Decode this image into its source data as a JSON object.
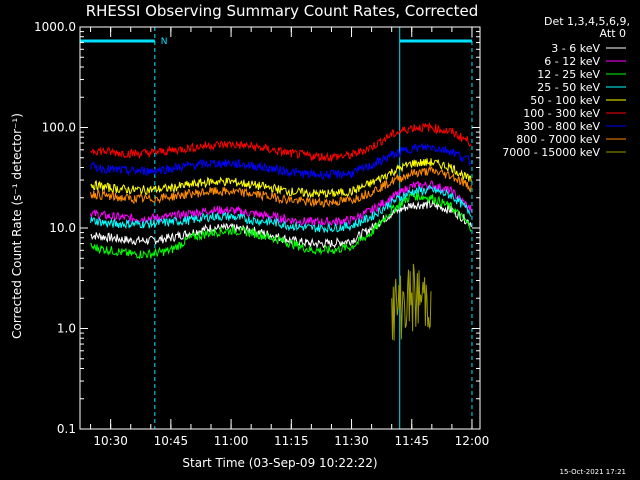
{
  "chart_data": {
    "type": "line",
    "title": "RHESSI Observing Summary Count Rates, Corrected",
    "xlabel": "Start Time (03-Sep-09 10:22:22)",
    "ylabel": "Corrected Count Rate (s⁻¹ detector⁻¹)",
    "y_scale": "log",
    "ylim": [
      0.1,
      1000
    ],
    "xlim": [
      "10:22:22",
      "12:02:00"
    ],
    "x_ticks": [
      "10:30",
      "10:45",
      "11:00",
      "11:15",
      "11:30",
      "11:45",
      "12:00"
    ],
    "y_ticks": [
      "0.1",
      "1.0",
      "10.0",
      "100.0",
      "1000.0"
    ],
    "legend_header": [
      "Det 1,3,4,5,6,9,",
      "Att 0"
    ],
    "legend_position": "right",
    "timestamp": "15-Oct-2021 17:21",
    "night_marker": "N",
    "night_periods": [
      [
        "10:22:22",
        "10:41:00"
      ],
      [
        "11:42:00",
        "12:00:00"
      ]
    ],
    "time_points": [
      "10:25",
      "10:30",
      "10:35",
      "10:40",
      "10:45",
      "10:50",
      "10:55",
      "11:00",
      "11:05",
      "11:10",
      "11:15",
      "11:20",
      "11:25",
      "11:30",
      "11:35",
      "11:40",
      "11:45",
      "11:50",
      "11:55",
      "12:00"
    ],
    "series": [
      {
        "name": "3 - 6 keV",
        "color": "#ffffff",
        "values": [
          8.5,
          8,
          7.5,
          7.5,
          8,
          9,
          10,
          10,
          9.5,
          8.5,
          7.5,
          7,
          7,
          7.5,
          10,
          14,
          17,
          17,
          15,
          11
        ]
      },
      {
        "name": "6 - 12 keV",
        "color": "#ff00ff",
        "values": [
          14,
          13,
          12.5,
          12.5,
          13,
          14,
          15,
          15,
          14,
          13,
          12,
          11.5,
          11.5,
          12,
          15,
          20,
          26,
          27,
          23,
          15
        ]
      },
      {
        "name": "12 - 25 keV",
        "color": "#00ff00",
        "values": [
          6.5,
          6,
          5.5,
          5.5,
          6,
          8,
          9,
          9.5,
          9,
          8,
          7,
          6,
          6,
          6.5,
          9,
          15,
          21,
          20,
          16,
          10
        ]
      },
      {
        "name": "25 - 50 keV",
        "color": "#00ffff",
        "values": [
          12,
          11,
          11,
          11,
          11.5,
          12,
          13,
          13,
          12,
          11.5,
          10.5,
          10,
          10,
          10.5,
          13,
          18,
          23,
          24,
          21,
          14
        ]
      },
      {
        "name": "50 - 100 keV",
        "color": "#ffff00",
        "values": [
          27,
          25,
          24,
          24,
          25,
          27,
          29,
          29,
          27,
          25,
          23,
          22,
          22,
          23,
          28,
          36,
          44,
          45,
          40,
          29
        ]
      },
      {
        "name": "100 - 300 keV",
        "color": "#ff0000",
        "values": [
          60,
          57,
          55,
          56,
          59,
          63,
          67,
          68,
          65,
          60,
          55,
          52,
          51,
          53,
          64,
          85,
          100,
          100,
          90,
          70
        ]
      },
      {
        "name": "300 - 800 keV",
        "color": "#0000ff",
        "values": [
          41,
          38,
          37,
          37,
          39,
          42,
          44,
          44,
          42,
          39,
          36,
          34,
          34,
          35,
          42,
          53,
          62,
          64,
          58,
          45
        ]
      },
      {
        "name": "800 - 7000 keV",
        "color": "#ff8c00",
        "values": [
          22,
          20.5,
          19.5,
          19.5,
          20.5,
          22,
          23,
          23,
          22,
          20.5,
          19,
          18,
          18,
          19,
          23,
          29,
          35,
          37,
          33,
          25
        ]
      },
      {
        "name": "7000 - 15000 keV",
        "color": "#999900",
        "values": [
          null,
          null,
          null,
          null,
          null,
          null,
          null,
          null,
          null,
          null,
          null,
          null,
          null,
          null,
          null,
          1.5,
          2,
          2,
          null,
          null
        ]
      }
    ]
  }
}
